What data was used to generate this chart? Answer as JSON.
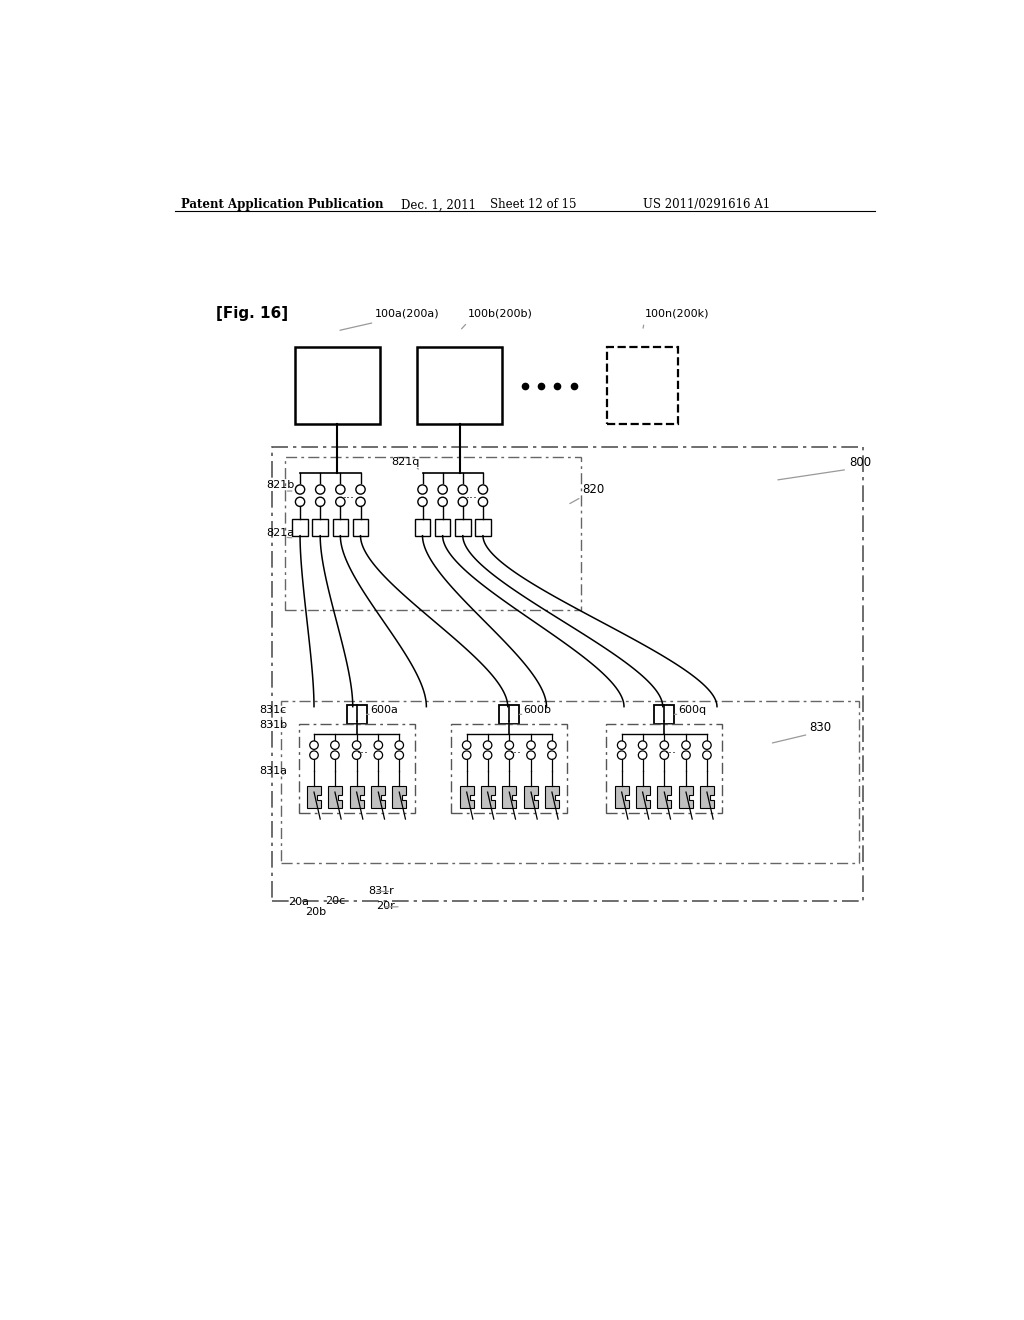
{
  "bg_color": "#ffffff",
  "lc": "#000000",
  "gc": "#999999",
  "header_left": "Patent Application Publication",
  "header_mid1": "Dec. 1, 2011",
  "header_mid2": "Sheet 12 of 15",
  "header_right": "US 2011/0291616 A1",
  "fig_label": "[Fig. 16]",
  "top_box_a_label": "100a(200a)",
  "top_box_b_label": "100b(200b)",
  "top_box_n_label": "100n(200k)",
  "label_800": "800",
  "label_820": "820",
  "label_830": "830",
  "label_821a": "821a",
  "label_821b": "821b",
  "label_821q": "821q",
  "label_831a": "831a",
  "label_831b": "831b",
  "label_831c": "831c",
  "label_831r": "831r",
  "label_600a": "600a",
  "label_600b": "600b",
  "label_600q": "600q",
  "label_20a": "20a",
  "label_20b": "20b",
  "label_20c": "20c",
  "label_20r": "20r"
}
